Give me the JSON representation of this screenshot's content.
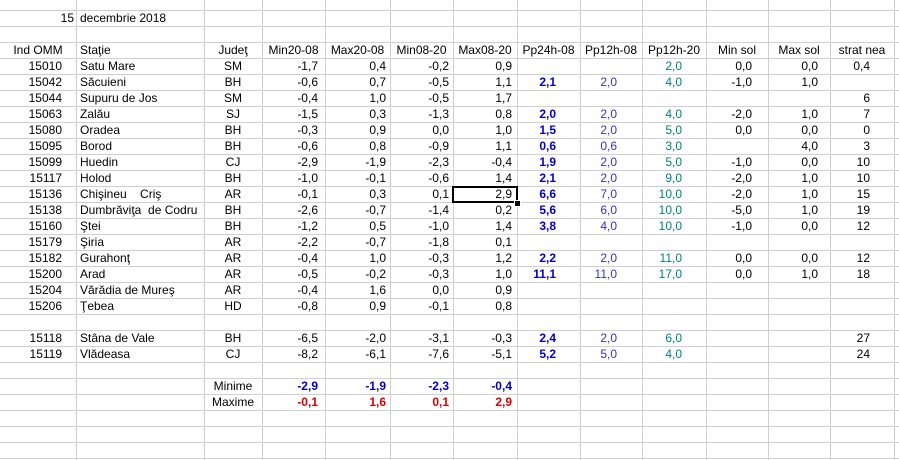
{
  "header": {
    "day": "15",
    "date": "decembrie 2018"
  },
  "table": {
    "columns": [
      "Ind OMM",
      "Staţie",
      "Judeţ",
      "Min20-08",
      "Max20-08",
      "Min08-20",
      "Max08-20",
      "Pp24h-08",
      "Pp12h-08",
      "Pp12h-20",
      "Min sol",
      "Max sol",
      "strat nea"
    ],
    "groups": [
      [
        [
          "15010",
          "Satu Mare",
          "SM",
          "-1,7",
          "0,4",
          "-0,2",
          "0,9",
          null,
          null,
          "2,0",
          "0,0",
          "0,0",
          "0,4"
        ],
        [
          "15042",
          "Săcuieni",
          "BH",
          "-0,6",
          "0,7",
          "-0,5",
          "1,1",
          "2,1",
          "2,0",
          "4,0",
          "-1,0",
          "1,0",
          null
        ],
        [
          "15044",
          "Supuru de Jos",
          "SM",
          "-0,4",
          "1,0",
          "-0,5",
          "1,7",
          null,
          null,
          null,
          null,
          null,
          "6"
        ],
        [
          "15063",
          "Zalău",
          "SJ",
          "-1,5",
          "0,3",
          "-1,3",
          "0,8",
          "2,0",
          "2,0",
          "4,0",
          "-2,0",
          "1,0",
          "7"
        ],
        [
          "15080",
          "Oradea",
          "BH",
          "-0,3",
          "0,9",
          "0,0",
          "1,0",
          "1,5",
          "2,0",
          "5,0",
          "0,0",
          "0,0",
          "0"
        ],
        [
          "15095",
          "Borod",
          "BH",
          "-0,6",
          "0,8",
          "-0,9",
          "1,1",
          "0,6",
          "0,6",
          "3,0",
          null,
          "4,0",
          "3"
        ],
        [
          "15099",
          "Huedin",
          "CJ",
          "-2,9",
          "-1,9",
          "-2,3",
          "-0,4",
          "1,9",
          "2,0",
          "5,0",
          "-1,0",
          "0,0",
          "10"
        ],
        [
          "15117",
          "Holod",
          "BH",
          "-1,0",
          "-0,1",
          "-0,6",
          "1,4",
          "2,1",
          "2,0",
          "9,0",
          "-2,0",
          "1,0",
          "10"
        ],
        [
          "15136",
          "Chişineu    Criş",
          "AR",
          "-0,1",
          "0,3",
          "0,1",
          "2,9",
          "6,6",
          "7,0",
          "10,0",
          "-2,0",
          "1,0",
          "15"
        ],
        [
          "15138",
          "Dumbrăviţa  de Codru",
          "BH",
          "-2,6",
          "-0,7",
          "-1,4",
          "0,2",
          "5,6",
          "6,0",
          "10,0",
          "-5,0",
          "1,0",
          "19"
        ],
        [
          "15160",
          "Ştei",
          "BH",
          "-1,2",
          "0,5",
          "-1,0",
          "1,4",
          "3,8",
          "4,0",
          "10,0",
          "-1,0",
          "0,0",
          "12"
        ],
        [
          "15179",
          "Şiria",
          "AR",
          "-2,2",
          "-0,7",
          "-1,8",
          "0,1",
          null,
          null,
          null,
          null,
          null,
          null
        ],
        [
          "15182",
          "Gurahonţ",
          "AR",
          "-0,4",
          "1,0",
          "-0,3",
          "1,2",
          "2,2",
          "2,0",
          "11,0",
          "0,0",
          "0,0",
          "12"
        ],
        [
          "15200",
          "Arad",
          "AR",
          "-0,5",
          "-0,2",
          "-0,3",
          "1,0",
          "11,1",
          "11,0",
          "17,0",
          "0,0",
          "1,0",
          "18"
        ],
        [
          "15204",
          "Vărădia de Mureş",
          "AR",
          "-0,4",
          "1,6",
          "0,0",
          "0,9",
          null,
          null,
          null,
          null,
          null,
          null
        ],
        [
          "15206",
          "Ţebea",
          "HD",
          "-0,8",
          "0,9",
          "-0,1",
          "0,8",
          null,
          null,
          null,
          null,
          null,
          null
        ]
      ],
      [
        [
          "15118",
          "Stâna de Vale",
          "BH",
          "-6,5",
          "-2,0",
          "-3,1",
          "-0,3",
          "2,4",
          "2,0",
          "6,0",
          null,
          null,
          "27"
        ],
        [
          "15119",
          "Vlădeasa",
          "CJ",
          "-8,2",
          "-6,1",
          "-7,6",
          "-5,1",
          "5,2",
          "5,0",
          "4,0",
          null,
          null,
          "24"
        ]
      ]
    ],
    "summary": [
      {
        "label": "Minime",
        "values": [
          "-2,9",
          "-1,9",
          "-2,3",
          "-0,4"
        ]
      },
      {
        "label": "Maxime",
        "values": [
          "-0,1",
          "1,6",
          "0,1",
          "2,9"
        ]
      }
    ]
  }
}
